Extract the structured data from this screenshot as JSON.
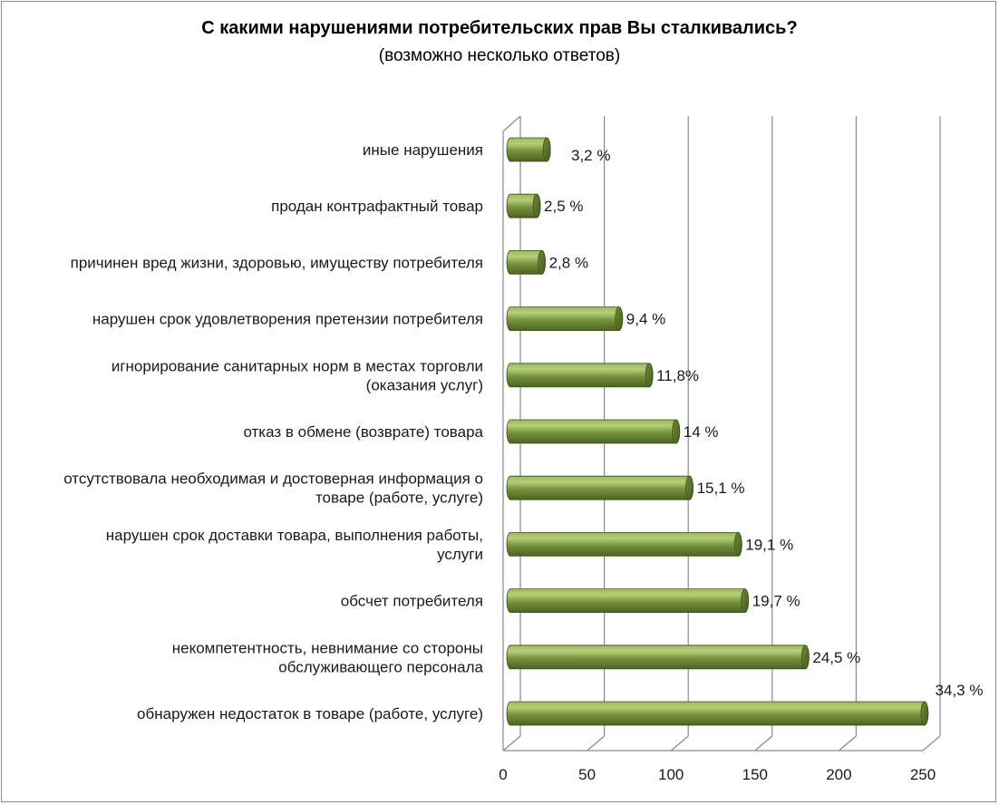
{
  "chart_data": {
    "type": "bar",
    "orientation": "horizontal",
    "title": "С какими нарушениями потребительских прав Вы сталкивались?",
    "subtitle": "(возможно несколько ответов)",
    "xlim": [
      0,
      250
    ],
    "xticks": [
      "0",
      "50",
      "100",
      "150",
      "200",
      "250"
    ],
    "grid": true,
    "bar_color": "#77933c",
    "categories": [
      [
        "обнаружен недостаток в товаре (работе, услуге)"
      ],
      [
        "некомпетентность, невнимание  со стороны",
        "обслуживающего персонала"
      ],
      [
        "обсчет потребителя"
      ],
      [
        "нарушен срок доставки товара, выполнения работы,",
        "услуги"
      ],
      [
        "отсутствовала необходимая и достоверная информация о",
        "товаре (работе, услуге)"
      ],
      [
        "отказ в обмене (возврате) товара"
      ],
      [
        "игнорирование санитарных норм в местах торговли",
        "(оказания услуг)"
      ],
      [
        "нарушен срок удовлетворения претензии потребителя"
      ],
      [
        "причинен вред жизни, здоровью, имуществу потребителя"
      ],
      [
        "продан контрафактный товар"
      ],
      [
        "иные нарушения"
      ]
    ],
    "values": [
      251,
      180,
      144,
      140,
      111,
      103,
      87,
      69,
      23,
      20,
      26
    ],
    "labels": [
      "34,3 %",
      "24,5 %",
      "19,7 %",
      "19,1 %",
      "15,1 %",
      "14 %",
      "11,8%",
      "9,4 %",
      "2,8 %",
      "2,5 %",
      "3,2 %"
    ]
  }
}
